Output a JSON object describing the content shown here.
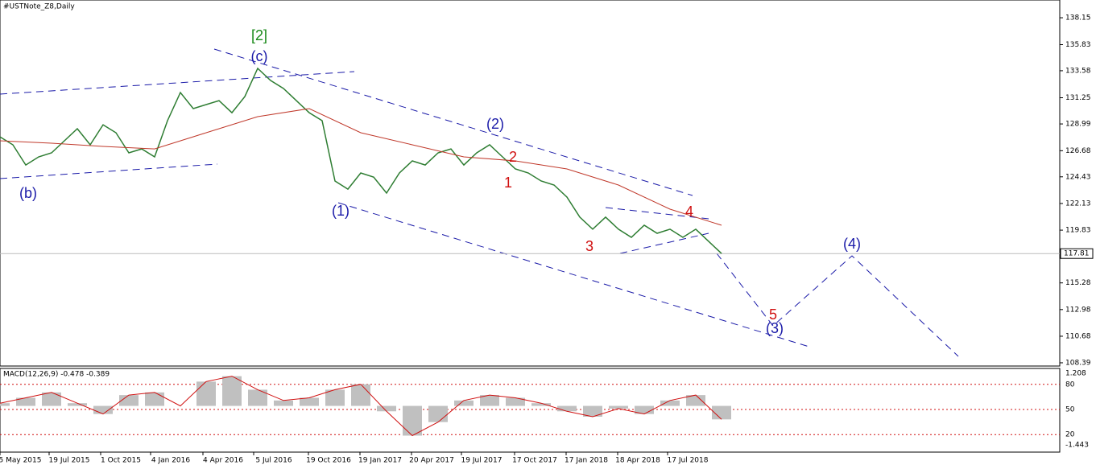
{
  "chart_data": {
    "type": "line",
    "title": "#USTNote_Z8,Daily",
    "ylim": [
      108.11,
      139.68
    ],
    "yticks": [
      138.15,
      135.83,
      133.58,
      131.25,
      128.99,
      126.68,
      124.43,
      122.13,
      119.83,
      115.28,
      112.98,
      110.68,
      108.39
    ],
    "current_price": 117.81,
    "xtick_labels": [
      "5 May 2015",
      "19 Jul 2015",
      "1 Oct 2015",
      "4 Jan 2016",
      "4 Apr 2016",
      "5 Jul 2016",
      "19 Oct 2016",
      "19 Jan 2017",
      "20 Apr 2017",
      "19 Jul 2017",
      "17 Oct 2017",
      "17 Jan 2018",
      "18 Apr 2018",
      "17 Jul 2018"
    ],
    "series": [
      {
        "name": "Price",
        "color": "#2e7d32",
        "values": [
          127.88,
          127.19,
          125.45,
          126.15,
          126.5,
          127.54,
          128.58,
          127.19,
          128.92,
          128.23,
          126.5,
          126.84,
          126.15,
          129.27,
          131.7,
          130.31,
          130.66,
          131.0,
          129.96,
          131.35,
          133.78,
          132.74,
          132.05,
          131.0,
          129.96,
          129.27,
          124.07,
          123.37,
          124.76,
          124.41,
          123.03,
          124.76,
          125.8,
          125.45,
          126.5,
          126.84,
          125.45,
          126.5,
          127.19,
          126.15,
          125.11,
          124.76,
          124.07,
          123.72,
          122.68,
          120.95,
          119.91,
          120.95,
          119.91,
          119.21,
          120.25,
          119.56,
          119.91,
          119.21,
          119.91,
          118.86,
          117.82
        ]
      },
      {
        "name": "MA",
        "color": "#c0392b",
        "values": [
          127.54,
          127.33,
          127.05,
          126.84,
          128.23,
          129.62,
          130.31,
          128.23,
          127.19,
          126.15,
          125.8,
          125.11,
          123.72,
          121.64,
          120.25
        ]
      }
    ],
    "annotations": [
      "[2]",
      "(c)",
      "(b)",
      "(1)",
      "(2)",
      "1",
      "2",
      "3",
      "4",
      "5",
      "(3)",
      "(4)"
    ],
    "macd": {
      "label": "MACD(12,26,9) -0.478 -0.389",
      "ylim": [
        -1.443,
        1.208
      ],
      "yticks": [
        1.208,
        -1.443
      ],
      "values": [
        0.1,
        0.3,
        0.5,
        0.1,
        -0.3,
        0.4,
        0.5,
        0.0,
        0.9,
        1.1,
        0.6,
        0.2,
        0.3,
        0.6,
        0.8,
        -0.2,
        -1.1,
        -0.6,
        0.2,
        0.4,
        0.3,
        0.1,
        -0.2,
        -0.4,
        -0.1,
        -0.3,
        0.2,
        0.4,
        -0.5
      ],
      "levels_lim": [
        0,
        100
      ],
      "levels": [
        80,
        50,
        20
      ]
    }
  }
}
